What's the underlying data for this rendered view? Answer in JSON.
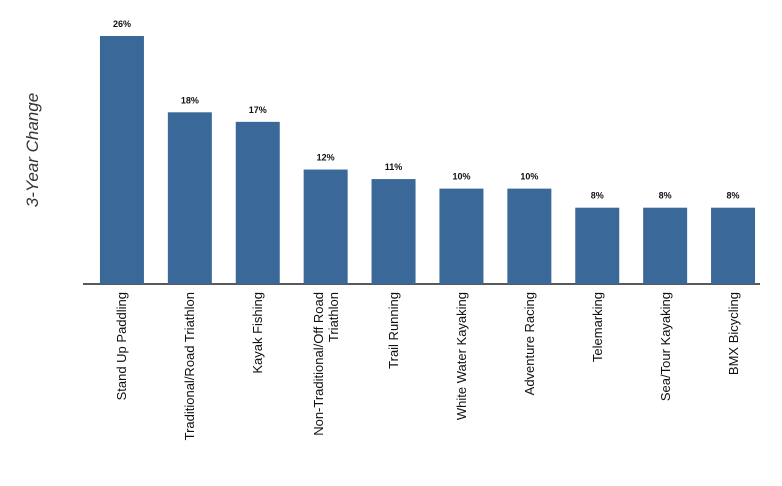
{
  "chart_data": {
    "type": "bar",
    "ylabel": "3-Year Change",
    "categories": [
      "Stand Up Paddling",
      "Traditional/Road Triathlon",
      "Kayak Fishing",
      "Non-Traditional/Off Road Triathlon",
      "Trail Running",
      "White Water Kayaking",
      "Adventure Racing",
      "Telemarking",
      "Sea/Tour Kayaking",
      "BMX Bicycling"
    ],
    "values": [
      26,
      18,
      17,
      12,
      11,
      10,
      10,
      8,
      8,
      8
    ],
    "value_labels": [
      "26%",
      "18%",
      "17%",
      "12%",
      "11%",
      "10%",
      "10%",
      "8%",
      "8%",
      "8%"
    ],
    "color": "#3a6898"
  }
}
